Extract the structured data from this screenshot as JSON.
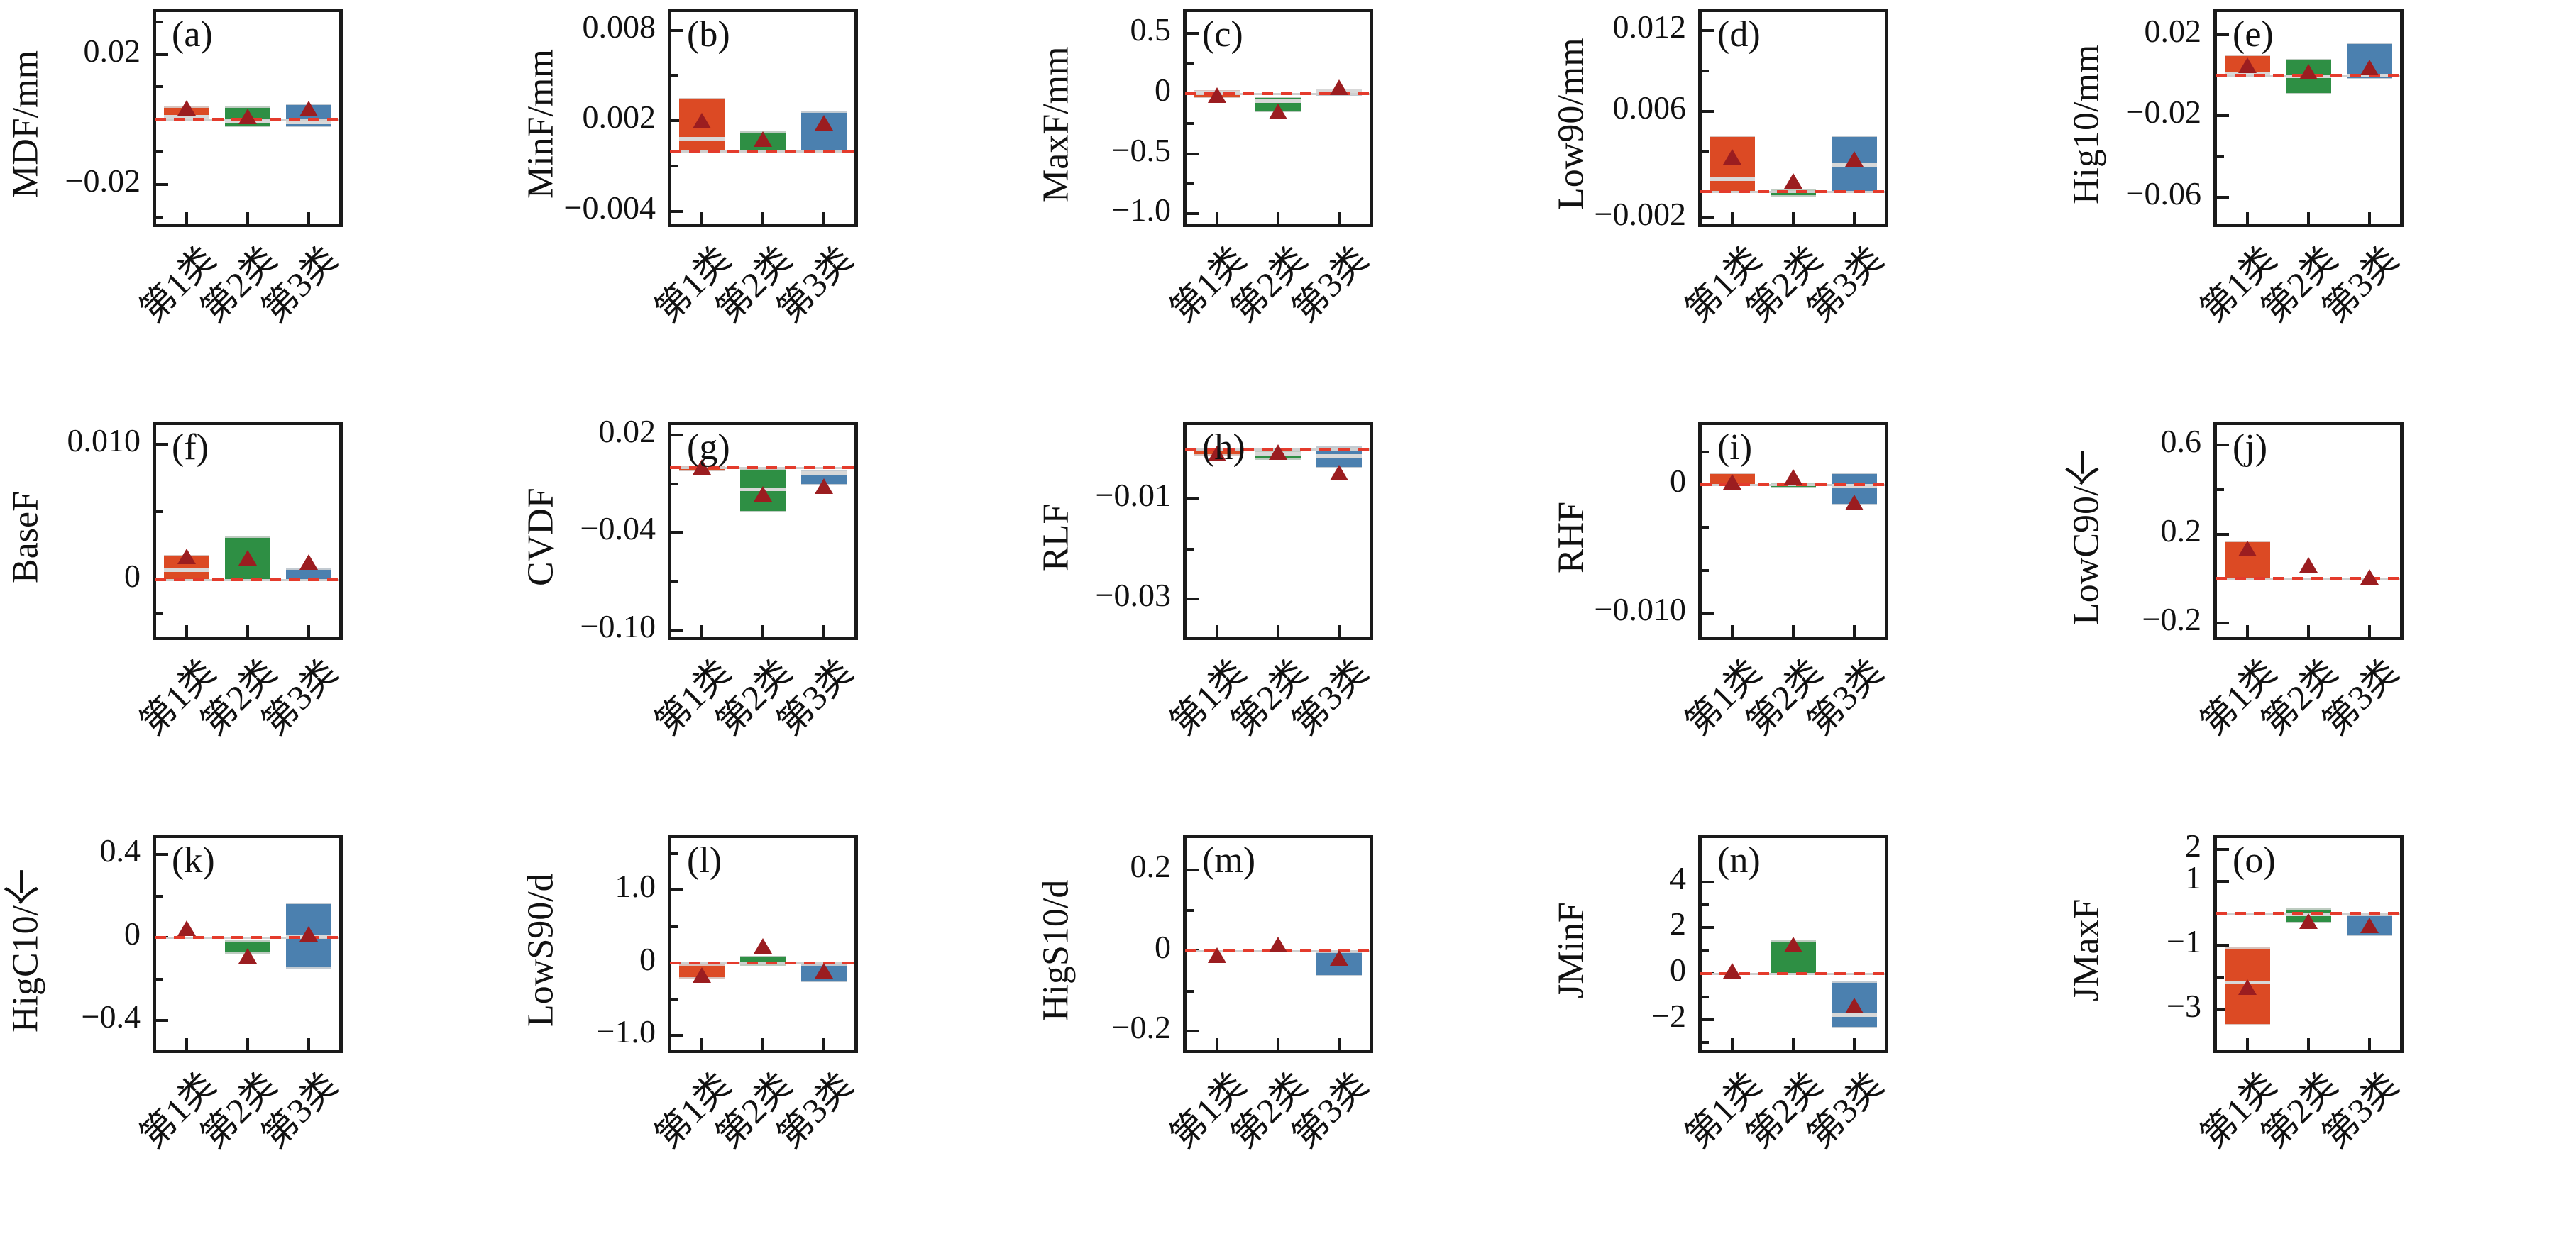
{
  "figure": {
    "categories": [
      "第1类",
      "第2类",
      "第3类"
    ],
    "series_colors": [
      "#dc4a24",
      "#2e8f44",
      "#4b80af"
    ],
    "mean_marker_color": "#9b1d20",
    "zero_line_color": "#e43b2c",
    "axis_color": "#1a1a1a",
    "legend": "none",
    "grid": "off"
  },
  "chart_data": [
    {
      "type": "bar",
      "variant": "boxplot",
      "panel": "(a)",
      "ylabel": "MDF/mm",
      "ylim": [
        -0.032,
        0.033
      ],
      "yticks": [
        {
          "v": 0.03,
          "label": ""
        },
        {
          "v": 0.02,
          "label": "0.02"
        },
        {
          "v": 0.01,
          "label": ""
        },
        {
          "v": 0,
          "label": ""
        },
        {
          "v": -0.01,
          "label": ""
        },
        {
          "v": -0.02,
          "label": "−0.02"
        },
        {
          "v": -0.03,
          "label": ""
        }
      ],
      "boxes": [
        {
          "category": "第1类",
          "lo": 0.0002,
          "hi": 0.004,
          "median": 0.0008,
          "mean": 0.0032
        },
        {
          "category": "第2类",
          "lo": -0.0015,
          "hi": 0.004,
          "median": -0.0008,
          "mean": 0.0004
        },
        {
          "category": "第3类",
          "lo": -0.0015,
          "hi": 0.0048,
          "median": -0.0009,
          "mean": 0.0028
        }
      ]
    },
    {
      "type": "bar",
      "variant": "boxplot",
      "panel": "(b)",
      "ylabel": "MinF/mm",
      "ylim": [
        -0.0048,
        0.0092
      ],
      "yticks": [
        {
          "v": 0.008,
          "label": "0.008"
        },
        {
          "v": 0.005,
          "label": ""
        },
        {
          "v": 0.002,
          "label": "0.002"
        },
        {
          "v": -0.001,
          "label": ""
        },
        {
          "v": -0.004,
          "label": "−0.004"
        }
      ],
      "boxes": [
        {
          "category": "第1类",
          "lo": 0.0001,
          "hi": 0.0035,
          "median": 0.0008,
          "mean": 0.0019
        },
        {
          "category": "第2类",
          "lo": 0.0001,
          "hi": 0.0013,
          "median": null,
          "mean": 0.0007
        },
        {
          "category": "第3类",
          "lo": 0.0001,
          "hi": 0.0026,
          "median": null,
          "mean": 0.0018
        }
      ]
    },
    {
      "type": "bar",
      "variant": "boxplot",
      "panel": "(c)",
      "ylabel": "MaxF/mm",
      "ylim": [
        -1.08,
        0.68
      ],
      "yticks": [
        {
          "v": 0.5,
          "label": "0.5"
        },
        {
          "v": 0.25,
          "label": ""
        },
        {
          "v": 0,
          "label": "0"
        },
        {
          "v": -0.25,
          "label": ""
        },
        {
          "v": -0.5,
          "label": "−0.5"
        },
        {
          "v": -0.75,
          "label": ""
        },
        {
          "v": -1.0,
          "label": "−1.0"
        }
      ],
      "boxes": [
        {
          "category": "第1类",
          "lo": -0.01,
          "hi": 0.03,
          "median": 0.01,
          "mean": -0.02
        },
        {
          "category": "第2类",
          "lo": -0.13,
          "hi": -0.02,
          "median": -0.06,
          "mean": -0.16
        },
        {
          "category": "第3类",
          "lo": 0.005,
          "hi": 0.04,
          "median": 0.02,
          "mean": 0.04
        }
      ]
    },
    {
      "type": "bar",
      "variant": "boxplot",
      "panel": "(d)",
      "ylabel": "Low90/mm",
      "ylim": [
        -0.0024,
        0.0134
      ],
      "yticks": [
        {
          "v": 0.012,
          "label": "0.012"
        },
        {
          "v": 0.009,
          "label": ""
        },
        {
          "v": 0.006,
          "label": "0.006"
        },
        {
          "v": 0.003,
          "label": ""
        },
        {
          "v": 0,
          "label": ""
        },
        {
          "v": -0.002,
          "label": "−0.002"
        }
      ],
      "boxes": [
        {
          "category": "第1类",
          "lo": 0.0001,
          "hi": 0.0042,
          "median": 0.0009,
          "mean": 0.0025
        },
        {
          "category": "第2类",
          "lo": -0.00015,
          "hi": 0.00015,
          "median": null,
          "mean": 0.0007
        },
        {
          "category": "第3类",
          "lo": 0.0001,
          "hi": 0.0042,
          "median": 0.002,
          "mean": 0.0023
        }
      ]
    },
    {
      "type": "bar",
      "variant": "boxplot",
      "panel": "(e)",
      "ylabel": "Hig10/mm",
      "ylim": [
        -0.073,
        0.031
      ],
      "yticks": [
        {
          "v": 0.02,
          "label": "0.02"
        },
        {
          "v": 0,
          "label": ""
        },
        {
          "v": -0.02,
          "label": "−0.02"
        },
        {
          "v": -0.04,
          "label": ""
        },
        {
          "v": -0.06,
          "label": "−0.06"
        }
      ],
      "boxes": [
        {
          "category": "第1类",
          "lo": 0.0003,
          "hi": 0.01,
          "median": 0.0008,
          "mean": 0.004
        },
        {
          "category": "第2类",
          "lo": -0.008,
          "hi": 0.008,
          "median": -0.0005,
          "mean": 0.001
        },
        {
          "category": "第3类",
          "lo": -0.0008,
          "hi": 0.016,
          "median": -0.0003,
          "mean": 0.003
        }
      ]
    },
    {
      "type": "bar",
      "variant": "boxplot",
      "panel": "(f)",
      "ylabel": "BaseF",
      "ylim": [
        -0.0042,
        0.0114
      ],
      "yticks": [
        {
          "v": 0.01,
          "label": "0.010"
        },
        {
          "v": 0.005,
          "label": ""
        },
        {
          "v": 0,
          "label": "0"
        },
        {
          "v": -0.0025,
          "label": ""
        }
      ],
      "boxes": [
        {
          "category": "第1类",
          "lo": 0.0001,
          "hi": 0.0018,
          "median": 0.0007,
          "mean": 0.0016
        },
        {
          "category": "第2类",
          "lo": 0.0001,
          "hi": 0.0032,
          "median": null,
          "mean": 0.0015
        },
        {
          "category": "第3类",
          "lo": 0.0001,
          "hi": 0.0008,
          "median": null,
          "mean": 0.0012
        }
      ]
    },
    {
      "type": "bar",
      "variant": "boxplot",
      "panel": "(g)",
      "ylabel": "CVDF",
      "ylim": [
        -0.104,
        0.026
      ],
      "yticks": [
        {
          "v": 0.02,
          "label": "0.02"
        },
        {
          "v": -0.01,
          "label": ""
        },
        {
          "v": -0.04,
          "label": "−0.04"
        },
        {
          "v": -0.07,
          "label": ""
        },
        {
          "v": -0.1,
          "label": "−0.10"
        }
      ],
      "boxes": [
        {
          "category": "第1类",
          "lo": -0.0008,
          "hi": 0.0005,
          "median": null,
          "mean": -0.0005
        },
        {
          "category": "第2类",
          "lo": -0.026,
          "hi": -0.001,
          "median": -0.0135,
          "mean": -0.017
        },
        {
          "category": "第3类",
          "lo": -0.0095,
          "hi": -0.002,
          "median": -0.0035,
          "mean": -0.0125
        }
      ]
    },
    {
      "type": "bar",
      "variant": "boxplot",
      "panel": "(h)",
      "ylabel": "RLF",
      "ylim": [
        -0.0375,
        0.0048
      ],
      "yticks": [
        {
          "v": 0,
          "label": ""
        },
        {
          "v": -0.01,
          "label": "−0.01"
        },
        {
          "v": -0.02,
          "label": ""
        },
        {
          "v": -0.03,
          "label": "−0.03"
        }
      ],
      "boxes": [
        {
          "category": "第1类",
          "lo": -0.0008,
          "hi": 0.0003,
          "median": null,
          "mean": -0.0012
        },
        {
          "category": "第2类",
          "lo": -0.0016,
          "hi": -0.0003,
          "median": -0.001,
          "mean": -0.0009
        },
        {
          "category": "第3类",
          "lo": -0.0033,
          "hi": 0.0005,
          "median": -0.0014,
          "mean": -0.005
        }
      ]
    },
    {
      "type": "bar",
      "variant": "boxplot",
      "panel": "(i)",
      "ylabel": "RHF",
      "ylim": [
        -0.0118,
        0.0046
      ],
      "yticks": [
        {
          "v": 0.0025,
          "label": ""
        },
        {
          "v": 0,
          "label": "0"
        },
        {
          "v": -0.0033,
          "label": ""
        },
        {
          "v": -0.0067,
          "label": ""
        },
        {
          "v": -0.01,
          "label": "−0.010"
        }
      ],
      "boxes": [
        {
          "category": "第1类",
          "lo": 0.0001,
          "hi": 0.0009,
          "median": null,
          "mean": 0.0001
        },
        {
          "category": "第2类",
          "lo": -0.0001,
          "hi": 0.0001,
          "median": null,
          "mean": 0.0005
        },
        {
          "category": "第3类",
          "lo": -0.0014,
          "hi": 0.0009,
          "median": -0.0001,
          "mean": -0.0015
        }
      ]
    },
    {
      "type": "bar",
      "variant": "boxplot",
      "panel": "(j)",
      "ylabel": "LowC90/个",
      "ylim": [
        -0.26,
        0.69
      ],
      "yticks": [
        {
          "v": 0.6,
          "label": "0.6"
        },
        {
          "v": 0.4,
          "label": ""
        },
        {
          "v": 0.2,
          "label": "0.2"
        },
        {
          "v": 0,
          "label": ""
        },
        {
          "v": -0.2,
          "label": "−0.2"
        }
      ],
      "boxes": [
        {
          "category": "第1类",
          "lo": 0.005,
          "hi": 0.17,
          "median": null,
          "mean": 0.13
        },
        {
          "category": "第2类",
          "lo": null,
          "hi": null,
          "median": null,
          "mean": 0.055
        },
        {
          "category": "第3类",
          "lo": null,
          "hi": null,
          "median": null,
          "mean": 0.002
        }
      ]
    },
    {
      "type": "bar",
      "variant": "boxplot",
      "panel": "(k)",
      "ylabel": "HigC10/个",
      "ylim": [
        -0.54,
        0.48
      ],
      "yticks": [
        {
          "v": 0.4,
          "label": "0.4"
        },
        {
          "v": 0.2,
          "label": ""
        },
        {
          "v": 0,
          "label": "0"
        },
        {
          "v": -0.2,
          "label": ""
        },
        {
          "v": -0.4,
          "label": "−0.4"
        }
      ],
      "boxes": [
        {
          "category": "第1类",
          "lo": null,
          "hi": null,
          "median": null,
          "mean": 0.04
        },
        {
          "category": "第2类",
          "lo": -0.065,
          "hi": -0.012,
          "median": null,
          "mean": -0.095
        },
        {
          "category": "第3类",
          "lo": -0.135,
          "hi": 0.17,
          "median": 0.005,
          "mean": 0.01
        }
      ]
    },
    {
      "type": "bar",
      "variant": "boxplot",
      "panel": "(l)",
      "ylabel": "LowS90/d",
      "ylim": [
        -1.2,
        1.72
      ],
      "yticks": [
        {
          "v": 1.5,
          "label": ""
        },
        {
          "v": 1.0,
          "label": "1.0"
        },
        {
          "v": 0.5,
          "label": ""
        },
        {
          "v": 0,
          "label": "0"
        },
        {
          "v": -0.5,
          "label": ""
        },
        {
          "v": -1.0,
          "label": "−1.0"
        }
      ],
      "boxes": [
        {
          "category": "第1类",
          "lo": -0.18,
          "hi": -0.02,
          "median": null,
          "mean": -0.19
        },
        {
          "category": "第2类",
          "lo": 0.0,
          "hi": 0.09,
          "median": null,
          "mean": 0.21
        },
        {
          "category": "第3类",
          "lo": -0.23,
          "hi": -0.02,
          "median": null,
          "mean": -0.13
        }
      ]
    },
    {
      "type": "bar",
      "variant": "boxplot",
      "panel": "(m)",
      "ylabel": "HigS10/d",
      "ylim": [
        -0.245,
        0.28
      ],
      "yticks": [
        {
          "v": 0.2,
          "label": "0.2"
        },
        {
          "v": 0.1,
          "label": ""
        },
        {
          "v": 0,
          "label": "0"
        },
        {
          "v": -0.1,
          "label": ""
        },
        {
          "v": -0.2,
          "label": "−0.2"
        }
      ],
      "boxes": [
        {
          "category": "第1类",
          "lo": null,
          "hi": null,
          "median": null,
          "mean": -0.015
        },
        {
          "category": "第2类",
          "lo": null,
          "hi": null,
          "median": null,
          "mean": 0.013
        },
        {
          "category": "第3类",
          "lo": -0.057,
          "hi": -0.002,
          "median": null,
          "mean": -0.022
        }
      ]
    },
    {
      "type": "bar",
      "variant": "boxplot",
      "panel": "(n)",
      "ylabel": "JMinF",
      "ylim": [
        -3.3,
        5.9
      ],
      "yticks": [
        {
          "v": 4,
          "label": "4"
        },
        {
          "v": 3,
          "label": ""
        },
        {
          "v": 2,
          "label": "2"
        },
        {
          "v": 1,
          "label": ""
        },
        {
          "v": 0,
          "label": "0"
        },
        {
          "v": -1,
          "label": ""
        },
        {
          "v": -2,
          "label": "−2"
        },
        {
          "v": -3,
          "label": ""
        }
      ],
      "boxes": [
        {
          "category": "第1类",
          "lo": null,
          "hi": null,
          "median": null,
          "mean": 0.05
        },
        {
          "category": "第2类",
          "lo": 0.05,
          "hi": 1.45,
          "median": null,
          "mean": 1.2
        },
        {
          "category": "第3类",
          "lo": -2.25,
          "hi": -0.35,
          "median": -1.8,
          "mean": -1.45
        }
      ]
    },
    {
      "type": "bar",
      "variant": "boxplot",
      "panel": "(o)",
      "ylabel": "JMaxF",
      "ylim": [
        -4.25,
        2.35
      ],
      "yticks": [
        {
          "v": 2,
          "label": "2"
        },
        {
          "v": 1,
          "label": "1"
        },
        {
          "v": 0,
          "label": ""
        },
        {
          "v": -1,
          "label": "−1"
        },
        {
          "v": -2,
          "label": ""
        },
        {
          "v": -3,
          "label": "−3"
        }
      ],
      "boxes": [
        {
          "category": "第1类",
          "lo": -3.4,
          "hi": -1.05,
          "median": -2.15,
          "mean": -2.35
        },
        {
          "category": "第2类",
          "lo": -0.22,
          "hi": 0.16,
          "median": -0.02,
          "mean": -0.28
        },
        {
          "category": "第3类",
          "lo": -0.62,
          "hi": -0.05,
          "median": null,
          "mean": -0.42
        }
      ]
    }
  ]
}
